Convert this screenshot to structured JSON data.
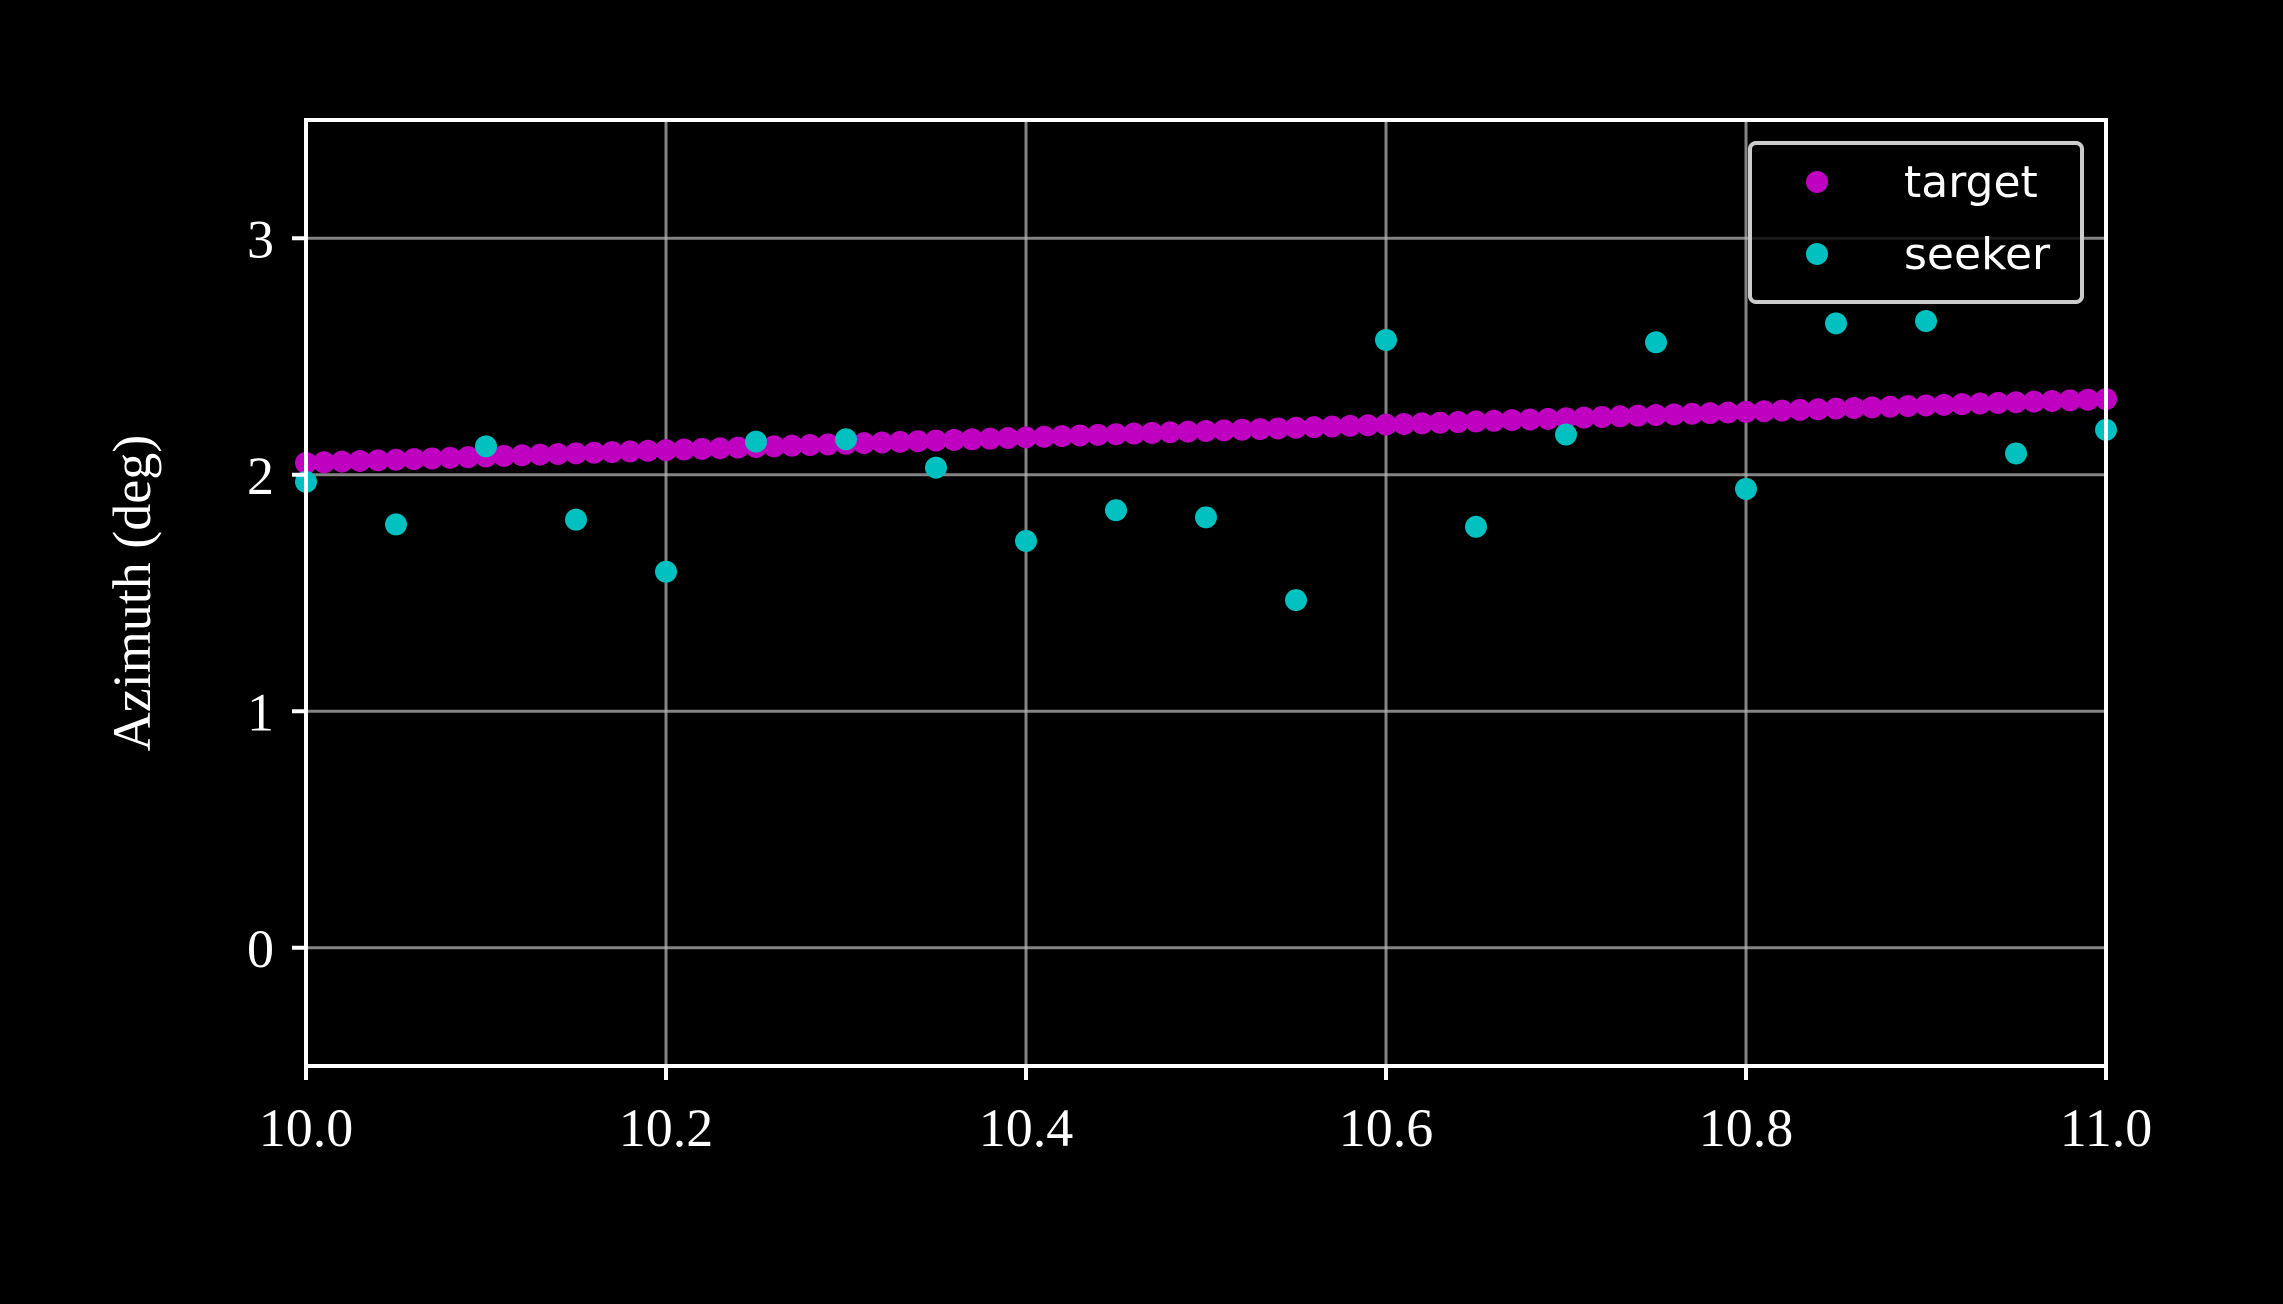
{
  "chart_data": {
    "type": "scatter",
    "title": "",
    "xlabel": "",
    "ylabel": "Azimuth (deg)",
    "xlim": [
      10.0,
      11.0
    ],
    "ylim": [
      -0.5,
      3.5
    ],
    "x_ticks": [
      10.0,
      10.2,
      10.4,
      10.6,
      10.8,
      11.0
    ],
    "x_tick_labels": [
      "10.0",
      "10.2",
      "10.4",
      "10.6",
      "10.8",
      "11.0"
    ],
    "y_ticks": [
      0,
      1,
      2,
      3
    ],
    "y_tick_labels": [
      "0",
      "1",
      "2",
      "3"
    ],
    "grid": true,
    "legend_position": "top-right",
    "background_color": "#000000",
    "series": [
      {
        "name": "target",
        "color": "#c000c0",
        "x_start": 10.0,
        "x_end": 11.0,
        "x_step": 0.01,
        "y_start": 2.05,
        "y_end": 2.32
      },
      {
        "name": "seeker",
        "color": "#00c0c0",
        "points": [
          [
            10.0,
            1.97
          ],
          [
            10.05,
            1.79
          ],
          [
            10.1,
            2.12
          ],
          [
            10.15,
            1.81
          ],
          [
            10.2,
            1.59
          ],
          [
            10.25,
            2.14
          ],
          [
            10.3,
            2.15
          ],
          [
            10.35,
            2.03
          ],
          [
            10.4,
            1.72
          ],
          [
            10.45,
            1.85
          ],
          [
            10.5,
            1.82
          ],
          [
            10.55,
            1.47
          ],
          [
            10.6,
            2.57
          ],
          [
            10.65,
            1.78
          ],
          [
            10.7,
            2.17
          ],
          [
            10.75,
            2.56
          ],
          [
            10.8,
            1.94
          ],
          [
            10.85,
            2.64
          ],
          [
            10.9,
            2.65
          ],
          [
            10.95,
            2.09
          ],
          [
            11.0,
            2.19
          ]
        ]
      }
    ]
  }
}
